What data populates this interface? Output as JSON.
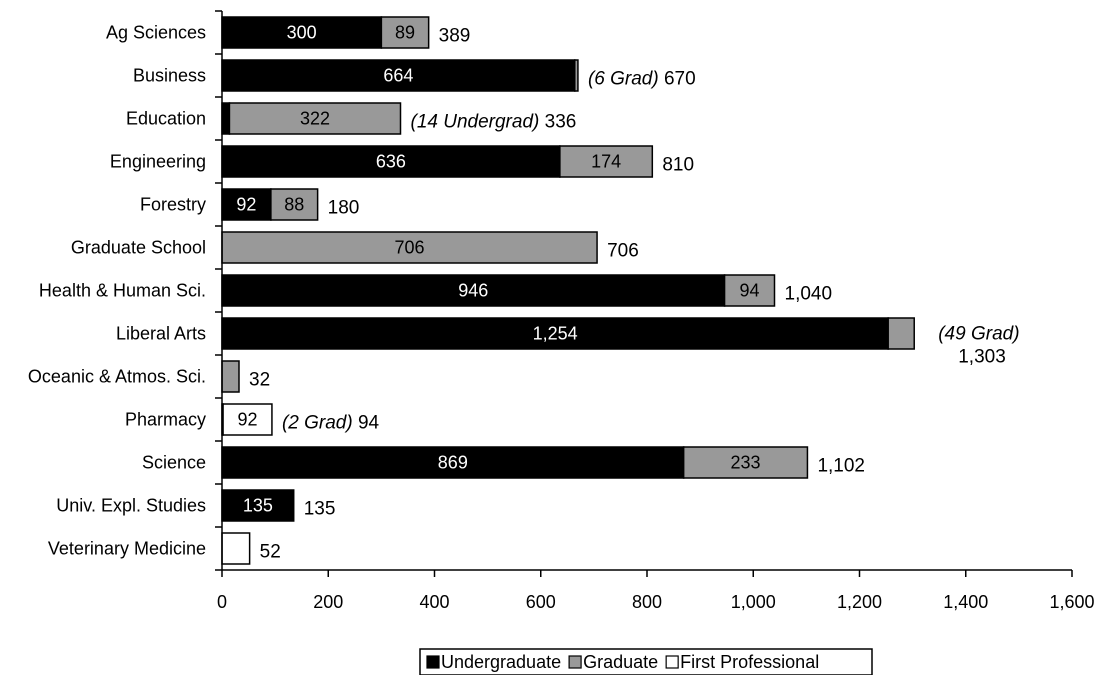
{
  "chart_data": {
    "type": "bar",
    "orientation": "horizontal",
    "stacked": true,
    "title": "",
    "xlabel": "",
    "ylabel": "",
    "xlim": [
      0,
      1600
    ],
    "x_ticks": [
      0,
      200,
      400,
      600,
      800,
      1000,
      1200,
      1400,
      1600
    ],
    "x_tick_labels": [
      "0",
      "200",
      "400",
      "600",
      "800",
      "1,000",
      "1,200",
      "1,400",
      "1,600"
    ],
    "grid": false,
    "legend_position": "bottom",
    "categories": [
      "Ag Sciences",
      "Business",
      "Education",
      "Engineering",
      "Forestry",
      "Graduate School",
      "Health & Human Sci.",
      "Liberal Arts",
      "Oceanic & Atmos. Sci.",
      "Pharmacy",
      "Science",
      "Univ. Expl. Studies",
      "Veterinary Medicine"
    ],
    "series": [
      {
        "name": "Undergraduate",
        "color": "#000000",
        "values": [
          300,
          664,
          14,
          636,
          92,
          0,
          946,
          1254,
          0,
          0,
          869,
          135,
          0
        ],
        "labels": [
          "300",
          "664",
          "",
          "636",
          "92",
          "",
          "946",
          "1,254",
          "",
          "",
          "869",
          "135",
          ""
        ]
      },
      {
        "name": "Graduate",
        "color": "#999999",
        "values": [
          89,
          6,
          322,
          174,
          88,
          706,
          94,
          49,
          32,
          2,
          233,
          0,
          0
        ],
        "labels": [
          "89",
          "",
          "322",
          "174",
          "88",
          "706",
          "94",
          "",
          "",
          "",
          "233",
          "",
          ""
        ]
      },
      {
        "name": "First Professional",
        "color": "#ffffff",
        "values": [
          0,
          0,
          0,
          0,
          0,
          0,
          0,
          0,
          0,
          92,
          0,
          0,
          52
        ],
        "labels": [
          "",
          "",
          "",
          "",
          "",
          "",
          "",
          "",
          "",
          "92",
          "",
          "",
          ""
        ]
      }
    ],
    "totals": [
      389,
      670,
      336,
      810,
      180,
      706,
      1040,
      1303,
      32,
      94,
      1102,
      135,
      52
    ],
    "end_labels": [
      {
        "note": "",
        "total": "389"
      },
      {
        "note": "(6 Grad)",
        "total": "670"
      },
      {
        "note": "(14 Undergrad)",
        "total": "336"
      },
      {
        "note": "",
        "total": "810"
      },
      {
        "note": "",
        "total": "180"
      },
      {
        "note": "",
        "total": "706"
      },
      {
        "note": "",
        "total": "1,040"
      },
      {
        "note": "(49 Grad)",
        "total": "1,303",
        "two_line": true
      },
      {
        "note": "",
        "total": "32"
      },
      {
        "note": "(2 Grad)",
        "total": "94"
      },
      {
        "note": "",
        "total": "1,102"
      },
      {
        "note": "",
        "total": "135"
      },
      {
        "note": "",
        "total": "52"
      }
    ]
  }
}
